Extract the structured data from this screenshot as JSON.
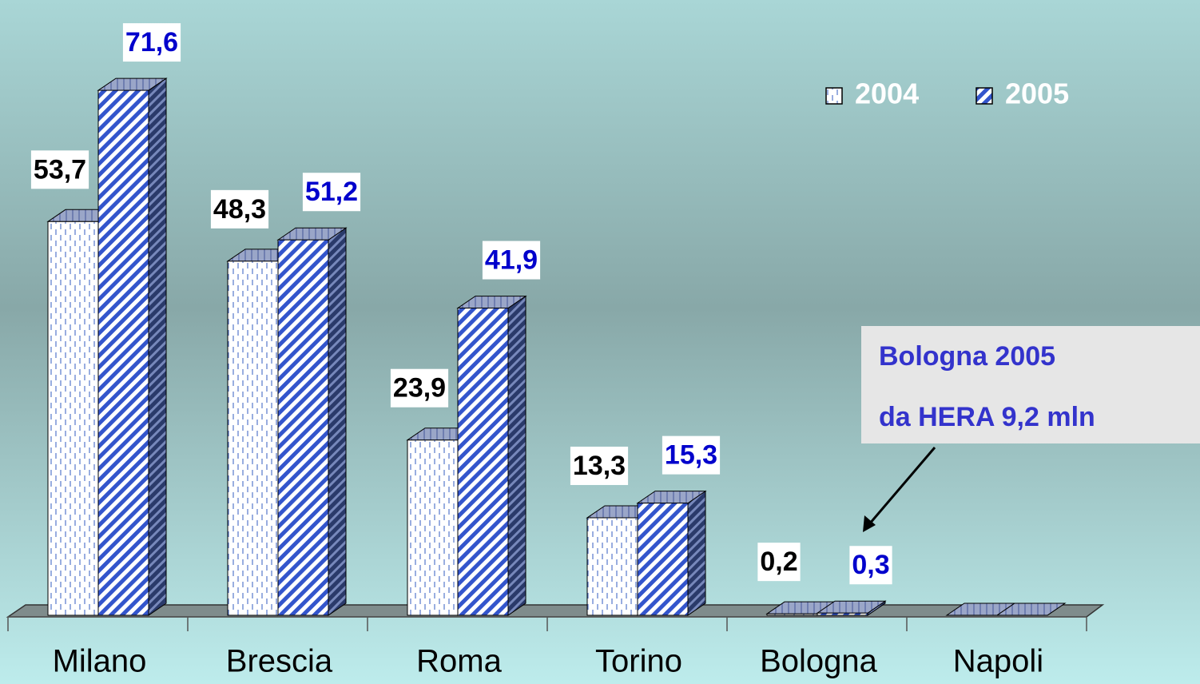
{
  "chart_data": {
    "type": "bar3d",
    "categories": [
      "Milano",
      "Brescia",
      "Roma",
      "Torino",
      "Bologna",
      "Napoli"
    ],
    "series": [
      {
        "name": "2004",
        "color": "#ffffff",
        "label_color": "#000000",
        "values": [
          53.7,
          48.3,
          23.9,
          13.3,
          0.2,
          0
        ],
        "value_labels": [
          "53,7",
          "48,3",
          "23,9",
          "13,3",
          "0,2",
          null
        ]
      },
      {
        "name": "2005",
        "color": "#3355cc",
        "label_color": "#0000cc",
        "values": [
          71.6,
          51.2,
          41.9,
          15.3,
          0.3,
          0
        ],
        "value_labels": [
          "71,6",
          "51,2",
          "41,9",
          "15,3",
          "0,3",
          null
        ]
      }
    ],
    "ylim": [
      0,
      80
    ],
    "legend": "top-right",
    "annotations": [
      "Bologna 2005",
      "da HERA 9,2 mln"
    ]
  }
}
